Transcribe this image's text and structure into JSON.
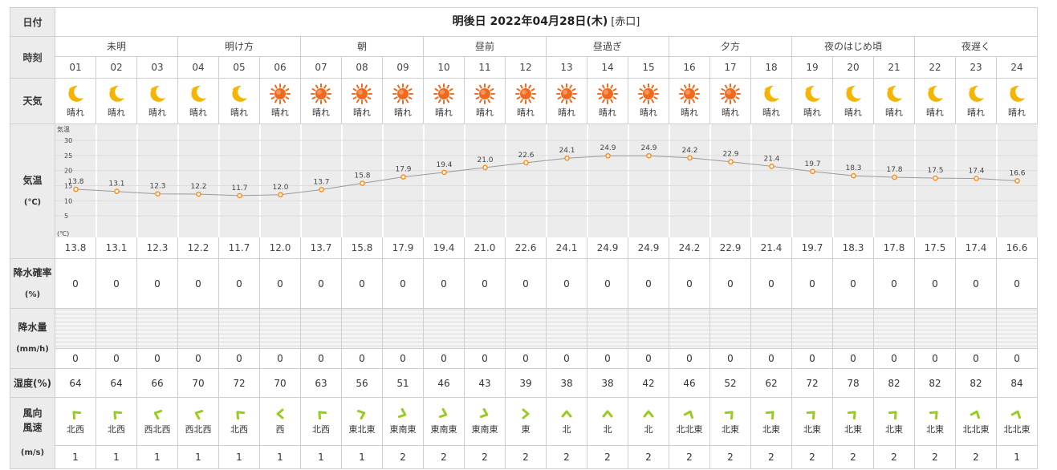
{
  "labels": {
    "date": "日付",
    "time": "時刻",
    "weather": "天気",
    "temp": "気温",
    "temp_unit": "(℃)",
    "precip_prob": "降水確率",
    "precip_prob_unit": "(%)",
    "precip_amount": "降水量",
    "precip_amount_unit": "(mm/h)",
    "humidity": "湿度(%)",
    "wind_dir": "風向",
    "wind_speed": "風速",
    "wind_speed_unit": "(m/s)"
  },
  "header": {
    "title": "明後日 2022年04月28日(木)",
    "location": "[赤口]"
  },
  "periods": [
    "未明",
    "明け方",
    "朝",
    "昼前",
    "昼過ぎ",
    "夕方",
    "夜のはじめ頃",
    "夜遅く"
  ],
  "hours": [
    "01",
    "02",
    "03",
    "04",
    "05",
    "06",
    "07",
    "08",
    "09",
    "10",
    "11",
    "12",
    "13",
    "14",
    "15",
    "16",
    "17",
    "18",
    "19",
    "20",
    "21",
    "22",
    "23",
    "24"
  ],
  "weather": [
    {
      "icon": "moon-icon",
      "label": "晴れ"
    },
    {
      "icon": "moon-icon",
      "label": "晴れ"
    },
    {
      "icon": "moon-icon",
      "label": "晴れ"
    },
    {
      "icon": "moon-icon",
      "label": "晴れ"
    },
    {
      "icon": "moon-icon",
      "label": "晴れ"
    },
    {
      "icon": "sun-icon",
      "label": "晴れ"
    },
    {
      "icon": "sun-icon",
      "label": "晴れ"
    },
    {
      "icon": "sun-icon",
      "label": "晴れ"
    },
    {
      "icon": "sun-icon",
      "label": "晴れ"
    },
    {
      "icon": "sun-icon",
      "label": "晴れ"
    },
    {
      "icon": "sun-icon",
      "label": "晴れ"
    },
    {
      "icon": "sun-icon",
      "label": "晴れ"
    },
    {
      "icon": "sun-icon",
      "label": "晴れ"
    },
    {
      "icon": "sun-icon",
      "label": "晴れ"
    },
    {
      "icon": "sun-icon",
      "label": "晴れ"
    },
    {
      "icon": "sun-icon",
      "label": "晴れ"
    },
    {
      "icon": "sun-icon",
      "label": "晴れ"
    },
    {
      "icon": "moon-icon",
      "label": "晴れ"
    },
    {
      "icon": "moon-icon",
      "label": "晴れ"
    },
    {
      "icon": "moon-icon",
      "label": "晴れ"
    },
    {
      "icon": "moon-icon",
      "label": "晴れ"
    },
    {
      "icon": "moon-icon",
      "label": "晴れ"
    },
    {
      "icon": "moon-icon",
      "label": "晴れ"
    },
    {
      "icon": "moon-icon",
      "label": "晴れ"
    }
  ],
  "chart_data": {
    "type": "line",
    "x": [
      "01",
      "02",
      "03",
      "04",
      "05",
      "06",
      "07",
      "08",
      "09",
      "10",
      "11",
      "12",
      "13",
      "14",
      "15",
      "16",
      "17",
      "18",
      "19",
      "20",
      "21",
      "22",
      "23",
      "24"
    ],
    "values": [
      13.8,
      13.1,
      12.3,
      12.2,
      11.7,
      12.0,
      13.7,
      15.8,
      17.9,
      19.4,
      21.0,
      22.6,
      24.1,
      24.9,
      24.9,
      24.2,
      22.9,
      21.4,
      19.7,
      18.3,
      17.8,
      17.5,
      17.4,
      16.6
    ],
    "ylim": [
      0,
      30
    ],
    "yticks": [
      "30",
      "25",
      "20",
      "15",
      "10",
      "5"
    ],
    "ylabel_top": "気温",
    "ylabel_bottom": "(℃)",
    "grid": true,
    "line_color": "#9a9a9a",
    "marker_color": "#ff8c1a"
  },
  "temps_text": [
    "13.8",
    "13.1",
    "12.3",
    "12.2",
    "11.7",
    "12.0",
    "13.7",
    "15.8",
    "17.9",
    "19.4",
    "21.0",
    "22.6",
    "24.1",
    "24.9",
    "24.9",
    "24.2",
    "22.9",
    "21.4",
    "19.7",
    "18.3",
    "17.8",
    "17.5",
    "17.4",
    "16.6"
  ],
  "precip_prob": [
    "0",
    "0",
    "0",
    "0",
    "0",
    "0",
    "0",
    "0",
    "0",
    "0",
    "0",
    "0",
    "0",
    "0",
    "0",
    "0",
    "0",
    "0",
    "0",
    "0",
    "0",
    "0",
    "0",
    "0"
  ],
  "precip_amount": [
    "0",
    "0",
    "0",
    "0",
    "0",
    "0",
    "0",
    "0",
    "0",
    "0",
    "0",
    "0",
    "0",
    "0",
    "0",
    "0",
    "0",
    "0",
    "0",
    "0",
    "0",
    "0",
    "0",
    "0"
  ],
  "humidity": [
    "64",
    "64",
    "66",
    "70",
    "72",
    "70",
    "63",
    "56",
    "51",
    "46",
    "43",
    "39",
    "38",
    "38",
    "42",
    "46",
    "52",
    "62",
    "72",
    "78",
    "82",
    "82",
    "82",
    "84"
  ],
  "wind": [
    {
      "dir": "北西",
      "deg": 135
    },
    {
      "dir": "北西",
      "deg": 135
    },
    {
      "dir": "西北西",
      "deg": 112
    },
    {
      "dir": "西北西",
      "deg": 112
    },
    {
      "dir": "北西",
      "deg": 135
    },
    {
      "dir": "西",
      "deg": 90
    },
    {
      "dir": "北西",
      "deg": 135
    },
    {
      "dir": "東北東",
      "deg": -112
    },
    {
      "dir": "東南東",
      "deg": -68
    },
    {
      "dir": "東南東",
      "deg": -68
    },
    {
      "dir": "東南東",
      "deg": -68
    },
    {
      "dir": "東",
      "deg": -90
    },
    {
      "dir": "北",
      "deg": 180
    },
    {
      "dir": "北",
      "deg": 180
    },
    {
      "dir": "北",
      "deg": 180
    },
    {
      "dir": "北北東",
      "deg": -158
    },
    {
      "dir": "北東",
      "deg": -135
    },
    {
      "dir": "北東",
      "deg": -135
    },
    {
      "dir": "北東",
      "deg": -135
    },
    {
      "dir": "北東",
      "deg": -135
    },
    {
      "dir": "北東",
      "deg": -135
    },
    {
      "dir": "北東",
      "deg": -135
    },
    {
      "dir": "北北東",
      "deg": -158
    },
    {
      "dir": "北北東",
      "deg": -158
    }
  ],
  "wind_speed": [
    "1",
    "1",
    "1",
    "1",
    "1",
    "1",
    "1",
    "1",
    "2",
    "2",
    "2",
    "2",
    "2",
    "2",
    "2",
    "2",
    "2",
    "2",
    "2",
    "2",
    "2",
    "2",
    "2",
    "1"
  ],
  "colors": {
    "header_bg": "#ececec",
    "sun": "#f06a1e",
    "moon": "#f5b400",
    "wind_arrow": "#9acb22"
  }
}
